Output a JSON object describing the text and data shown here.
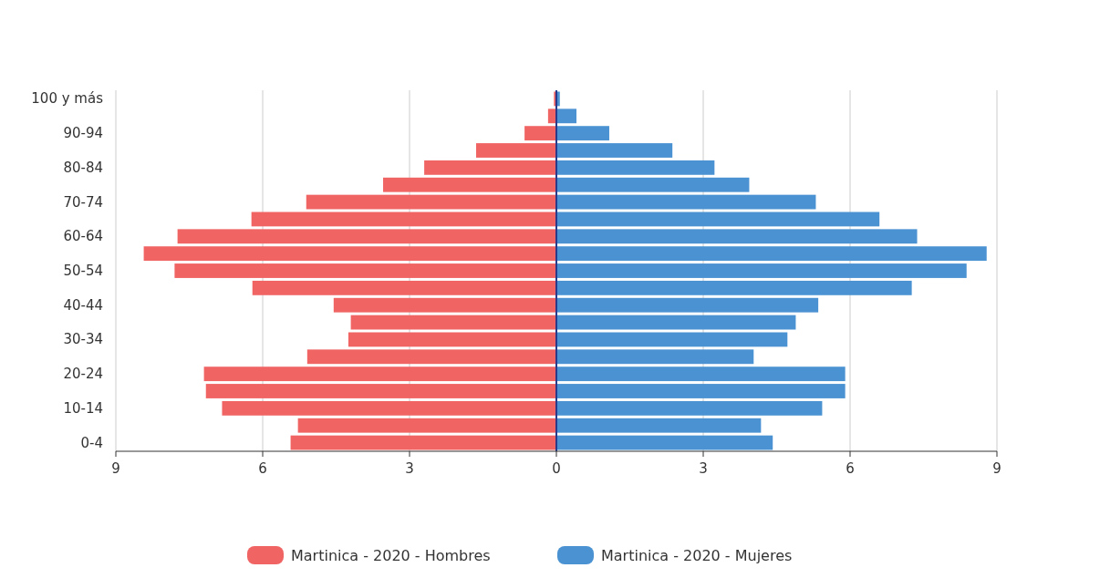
{
  "chart_data": {
    "type": "bar",
    "orientation": "horizontal",
    "categories": [
      "100 y más",
      null,
      "90-94",
      null,
      "80-84",
      null,
      "70-74",
      null,
      "60-64",
      null,
      "50-54",
      null,
      "40-44",
      null,
      "30-34",
      null,
      "20-24",
      null,
      "10-14",
      null,
      "0-4"
    ],
    "series": [
      {
        "name": "Martinica - 2020 - Hombres",
        "color": "#f06464",
        "values": [
          -0.05,
          -0.17,
          -0.65,
          -1.64,
          -2.7,
          -3.54,
          -5.11,
          -6.23,
          -7.74,
          -8.43,
          -7.8,
          -6.21,
          -4.55,
          -4.2,
          -4.25,
          -5.09,
          -7.2,
          -7.16,
          -6.83,
          -5.28,
          -5.43
        ]
      },
      {
        "name": "Martinica - 2020 - Mujeres",
        "color": "#4a92d2",
        "values": [
          0.07,
          0.41,
          1.08,
          2.37,
          3.23,
          3.94,
          5.3,
          6.6,
          7.37,
          8.79,
          8.38,
          7.26,
          5.35,
          4.89,
          4.72,
          4.03,
          5.9,
          5.9,
          5.43,
          4.18,
          4.42
        ]
      }
    ],
    "xlim": [
      -9,
      9
    ],
    "xticks": [
      {
        "value": -9,
        "label": "9"
      },
      {
        "value": -6,
        "label": "6"
      },
      {
        "value": -3,
        "label": "3"
      },
      0,
      3,
      6,
      9
    ],
    "stacked": true,
    "ref_lines": [
      {
        "axis": "x",
        "value": 0,
        "color": "#2a3a8a"
      }
    ],
    "grid": "x",
    "legend": "bottom"
  }
}
